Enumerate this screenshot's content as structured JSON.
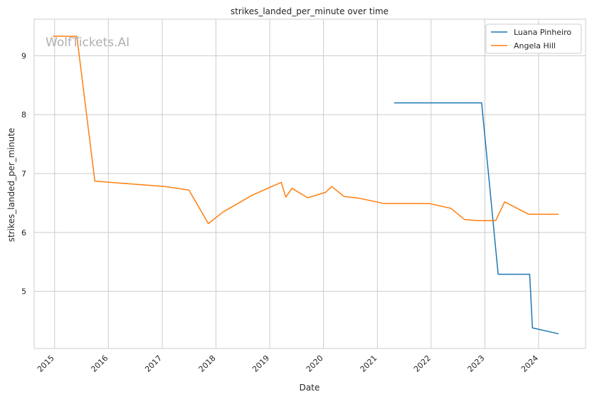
{
  "chart_data": {
    "type": "line",
    "title": "strikes_landed_per_minute over time",
    "xlabel": "Date",
    "ylabel": "strikes_landed_per_minute",
    "watermark": "WolfTickets.AI",
    "xlim": [
      "2014-08-15",
      "2024-11-15"
    ],
    "ylim": [
      4.03,
      9.62
    ],
    "xticks": [
      "2015",
      "2016",
      "2017",
      "2018",
      "2019",
      "2020",
      "2021",
      "2022",
      "2023",
      "2024"
    ],
    "yticks": [
      5,
      6,
      7,
      8,
      9
    ],
    "grid": true,
    "legend_position": "top-right",
    "series": [
      {
        "name": "Luana Pinheiro",
        "color": "#1f77b4",
        "x": [
          "2021-04-25",
          "2022-12-10",
          "2023-04-01",
          "2023-11-01",
          "2023-11-20",
          "2024-05-15"
        ],
        "y": [
          8.2,
          8.2,
          5.29,
          5.29,
          4.38,
          4.28
        ]
      },
      {
        "name": "Angela Hill",
        "color": "#ff7f0e",
        "x": [
          "2014-12-20",
          "2015-06-01",
          "2015-10-01",
          "2017-01-20",
          "2017-07-01",
          "2017-11-10",
          "2018-02-20",
          "2018-09-01",
          "2019-03-20",
          "2019-04-20",
          "2019-06-01",
          "2019-09-15",
          "2020-01-15",
          "2020-02-25",
          "2020-05-20",
          "2020-09-01",
          "2021-02-15",
          "2021-12-20",
          "2022-05-15",
          "2022-08-15",
          "2022-11-15",
          "2023-03-15",
          "2023-05-15",
          "2023-10-25",
          "2024-05-15"
        ],
        "y": [
          9.33,
          9.33,
          6.87,
          6.78,
          6.72,
          6.15,
          6.35,
          6.63,
          6.85,
          6.6,
          6.75,
          6.59,
          6.68,
          6.78,
          6.61,
          6.58,
          6.49,
          6.49,
          6.41,
          6.22,
          6.2,
          6.2,
          6.52,
          6.31,
          6.31
        ]
      }
    ]
  }
}
